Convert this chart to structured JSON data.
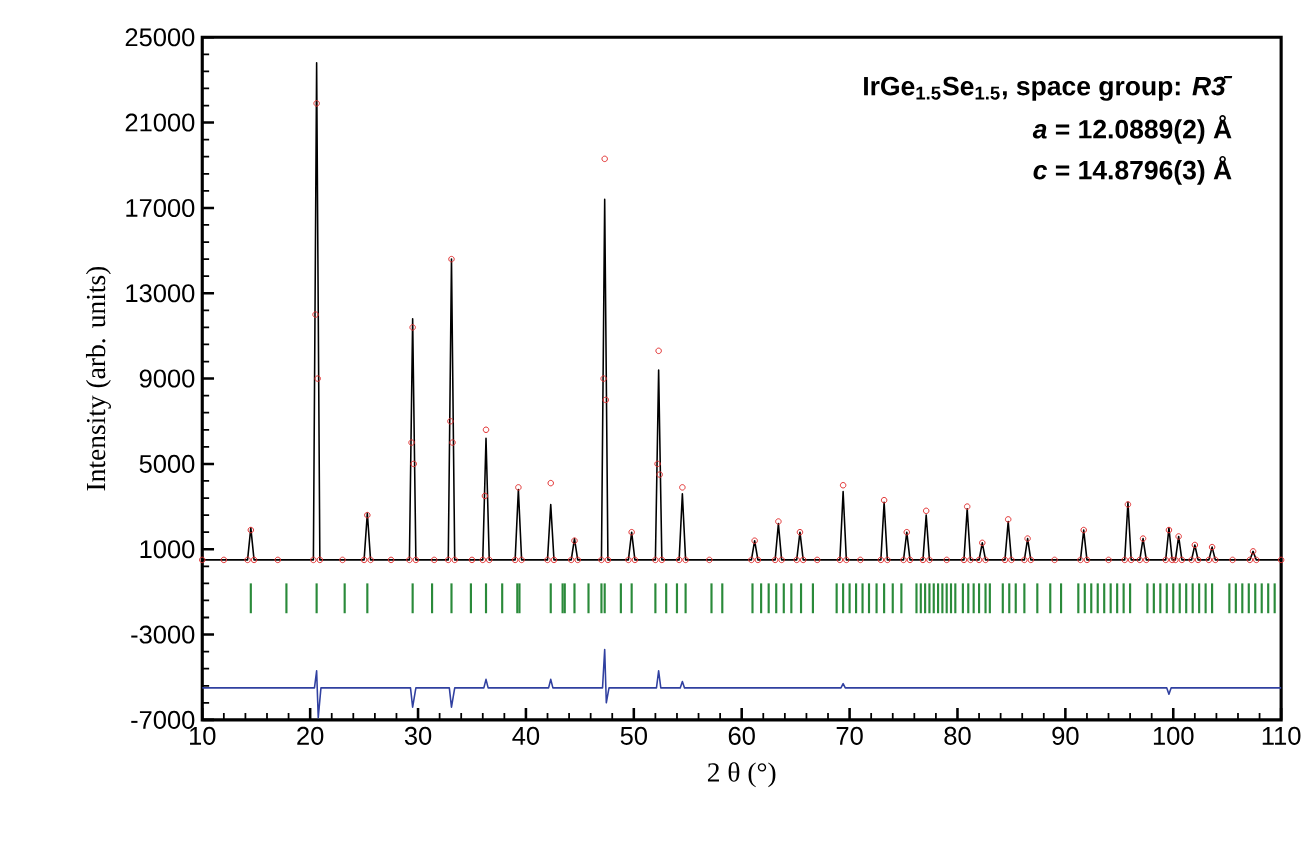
{
  "chart_data": {
    "type": "line",
    "xlabel": "2 θ (°)",
    "ylabel": "Intensity (arb. units)",
    "annotations": [
      "IrGe$_{1.5}$Se$_{1.5}$, space group: *R3̄*",
      "*a* = 12.0889(2) Å",
      "*c* = 14.8796(3) Å"
    ],
    "xlim": [
      10,
      110
    ],
    "xticks": [
      10,
      20,
      30,
      40,
      50,
      60,
      70,
      80,
      90,
      100,
      110
    ],
    "ylim": [
      -7000,
      25000
    ],
    "yticks": [
      -7000,
      -3000,
      1000,
      5000,
      9000,
      13000,
      17000,
      21000,
      25000
    ],
    "series": [
      {
        "color": "#000000",
        "x": [
          10,
          14.2,
          14.5,
          14.8,
          20.3,
          20.6,
          20.9,
          25.0,
          25.3,
          25.6,
          29.2,
          29.5,
          29.8,
          32.8,
          33.1,
          33.4,
          36.0,
          36.3,
          36.6,
          39.0,
          39.3,
          39.6,
          42.0,
          42.3,
          42.6,
          44.2,
          44.5,
          44.8,
          47.0,
          47.3,
          47.6,
          49.5,
          49.8,
          50.1,
          52.0,
          52.3,
          52.6,
          54.2,
          54.5,
          54.8,
          60.9,
          61.2,
          61.5,
          63.1,
          63.4,
          63.7,
          65.1,
          65.4,
          65.7,
          69.1,
          69.4,
          69.7,
          72.9,
          73.2,
          73.5,
          75.0,
          75.3,
          75.6,
          76.8,
          77.1,
          77.4,
          80.6,
          80.9,
          81.2,
          82.0,
          82.3,
          82.6,
          84.4,
          84.7,
          85.0,
          86.2,
          86.5,
          86.8,
          91.4,
          91.7,
          92.0,
          95.5,
          95.8,
          96.1,
          96.9,
          97.2,
          97.5,
          99.3,
          99.6,
          99.9,
          100.2,
          100.5,
          100.8,
          101.7,
          102.0,
          102.3,
          103.3,
          103.6,
          103.9,
          107.1,
          107.4,
          107.7,
          110
        ],
        "values": [
          500,
          500,
          2000,
          500,
          500,
          23800,
          500,
          500,
          2700,
          500,
          500,
          11800,
          500,
          500,
          14600,
          500,
          500,
          6200,
          500,
          500,
          3800,
          500,
          500,
          3100,
          500,
          500,
          1500,
          500,
          500,
          17400,
          500,
          500,
          1800,
          500,
          500,
          9400,
          500,
          500,
          3600,
          500,
          500,
          1400,
          500,
          500,
          2200,
          500,
          500,
          1800,
          500,
          500,
          3700,
          500,
          500,
          3200,
          500,
          500,
          1800,
          500,
          500,
          2600,
          500,
          500,
          2900,
          500,
          500,
          1300,
          500,
          500,
          2300,
          500,
          500,
          1500,
          500,
          500,
          1900,
          500,
          500,
          3200,
          500,
          500,
          1500,
          500,
          500,
          2000,
          500,
          500,
          1600,
          500,
          500,
          1200,
          500,
          500,
          1100,
          500,
          500,
          900,
          500,
          500
        ]
      },
      {
        "type": "scatter",
        "color": "#e03030",
        "marker": "circle",
        "x": [
          10,
          12,
          14.2,
          14.5,
          14.8,
          17,
          20.3,
          20.5,
          20.6,
          20.7,
          20.9,
          23,
          25.0,
          25.3,
          25.6,
          27.5,
          29.2,
          29.4,
          29.5,
          29.6,
          29.8,
          31.5,
          32.8,
          33.0,
          33.1,
          33.2,
          33.4,
          35,
          36.0,
          36.2,
          36.3,
          36.6,
          39.0,
          39.3,
          39.6,
          42.0,
          42.3,
          42.6,
          44.2,
          44.5,
          44.8,
          47.0,
          47.2,
          47.3,
          47.4,
          47.6,
          49.5,
          49.8,
          50.1,
          52.0,
          52.2,
          52.3,
          52.4,
          52.6,
          54.2,
          54.5,
          54.8,
          57,
          60.9,
          61.2,
          61.5,
          63.1,
          63.4,
          63.7,
          65.1,
          65.4,
          65.7,
          67,
          69.1,
          69.4,
          69.7,
          71,
          72.9,
          73.2,
          73.5,
          75.0,
          75.3,
          75.6,
          76.8,
          77.1,
          77.4,
          79,
          80.6,
          80.9,
          81.2,
          82.0,
          82.3,
          82.6,
          84.4,
          84.7,
          85.0,
          86.2,
          86.5,
          86.8,
          89,
          91.4,
          91.7,
          92.0,
          94,
          95.5,
          95.8,
          96.1,
          96.9,
          97.2,
          97.5,
          99.3,
          99.6,
          99.9,
          100.2,
          100.5,
          100.8,
          101.7,
          102.0,
          102.3,
          103.3,
          103.6,
          103.9,
          105.5,
          107.1,
          107.4,
          107.7,
          110
        ],
        "values": [
          500,
          500,
          500,
          1900,
          500,
          500,
          500,
          12000,
          21900,
          9000,
          500,
          500,
          500,
          2600,
          500,
          500,
          500,
          6000,
          11400,
          5000,
          500,
          500,
          500,
          7000,
          14600,
          6000,
          500,
          500,
          500,
          3500,
          6600,
          500,
          500,
          3900,
          500,
          500,
          4100,
          500,
          500,
          1400,
          500,
          500,
          9000,
          19300,
          8000,
          500,
          500,
          1800,
          500,
          500,
          5000,
          10300,
          4500,
          500,
          500,
          3900,
          500,
          500,
          500,
          1400,
          500,
          500,
          2300,
          500,
          500,
          1800,
          500,
          500,
          500,
          4000,
          500,
          500,
          500,
          3300,
          500,
          500,
          1800,
          500,
          500,
          2800,
          500,
          500,
          500,
          3000,
          500,
          500,
          1300,
          500,
          500,
          2400,
          500,
          500,
          1500,
          500,
          500,
          500,
          1900,
          500,
          500,
          500,
          3100,
          500,
          500,
          1500,
          500,
          500,
          1900,
          500,
          500,
          1600,
          500,
          500,
          1200,
          500,
          500,
          1100,
          500,
          500,
          500,
          900,
          500,
          500
        ]
      },
      {
        "type": "bar",
        "color": "#2a8a3a",
        "x": [
          14.5,
          17.8,
          20.6,
          23.2,
          25.3,
          29.5,
          31.3,
          33.1,
          34.9,
          36.3,
          37.8,
          39.2,
          39.4,
          42.3,
          43.4,
          43.6,
          44.5,
          45.8,
          47.0,
          47.3,
          48.8,
          49.8,
          52.0,
          53.0,
          54.0,
          54.8,
          57.2,
          58.2,
          61.0,
          61.8,
          62.5,
          63.2,
          63.9,
          64.6,
          65.5,
          66.6,
          68.8,
          69.4,
          70.0,
          70.6,
          71.2,
          71.8,
          72.5,
          73.2,
          74.0,
          74.8,
          76.2,
          76.6,
          77.0,
          77.4,
          77.8,
          78.2,
          78.6,
          79.0,
          79.4,
          79.8,
          80.5,
          81.0,
          81.5,
          82.0,
          82.6,
          83.0,
          84.2,
          84.8,
          85.4,
          86.2,
          87.4,
          88.6,
          89.6,
          91.2,
          91.8,
          92.4,
          93.0,
          93.6,
          94.2,
          94.8,
          95.4,
          96.0,
          97.6,
          98.2,
          98.8,
          99.4,
          100.0,
          100.6,
          101.2,
          101.8,
          102.4,
          103.0,
          103.6,
          105.2,
          105.8,
          106.4,
          107.0,
          107.6,
          108.2,
          108.8,
          109.4
        ],
        "base": [
          -2000,
          -2000,
          -2000,
          -2000,
          -2000,
          -2000,
          -2000,
          -2000,
          -2000,
          -2000,
          -2000,
          -2000,
          -2000,
          -2000,
          -2000,
          -2000,
          -2000,
          -2000,
          -2000,
          -2000,
          -2000,
          -2000,
          -2000,
          -2000,
          -2000,
          -2000,
          -2000,
          -2000,
          -2000,
          -2000,
          -2000,
          -2000,
          -2000,
          -2000,
          -2000,
          -2000,
          -2000,
          -2000,
          -2000,
          -2000,
          -2000,
          -2000,
          -2000,
          -2000,
          -2000,
          -2000,
          -2000,
          -2000,
          -2000,
          -2000,
          -2000,
          -2000,
          -2000,
          -2000,
          -2000,
          -2000,
          -2000,
          -2000,
          -2000,
          -2000,
          -2000,
          -2000,
          -2000,
          -2000,
          -2000,
          -2000,
          -2000,
          -2000,
          -2000,
          -2000,
          -2000,
          -2000,
          -2000,
          -2000,
          -2000,
          -2000,
          -2000,
          -2000,
          -2000,
          -2000,
          -2000,
          -2000,
          -2000,
          -2000,
          -2000,
          -2000,
          -2000,
          -2000,
          -2000,
          -2000,
          -2000,
          -2000,
          -2000,
          -2000,
          -2000,
          -2000,
          -2000
        ],
        "values": [
          1400,
          1400,
          1400,
          1400,
          1400,
          1400,
          1400,
          1400,
          1400,
          1400,
          1400,
          1400,
          1400,
          1400,
          1400,
          1400,
          1400,
          1400,
          1400,
          1400,
          1400,
          1400,
          1400,
          1400,
          1400,
          1400,
          1400,
          1400,
          1400,
          1400,
          1400,
          1400,
          1400,
          1400,
          1400,
          1400,
          1400,
          1400,
          1400,
          1400,
          1400,
          1400,
          1400,
          1400,
          1400,
          1400,
          1400,
          1400,
          1400,
          1400,
          1400,
          1400,
          1400,
          1400,
          1400,
          1400,
          1400,
          1400,
          1400,
          1400,
          1400,
          1400,
          1400,
          1400,
          1400,
          1400,
          1400,
          1400,
          1400,
          1400,
          1400,
          1400,
          1400,
          1400,
          1400,
          1400,
          1400,
          1400,
          1400,
          1400,
          1400,
          1400,
          1400,
          1400,
          1400,
          1400,
          1400,
          1400,
          1400,
          1400,
          1400,
          1400,
          1400,
          1400,
          1400,
          1400,
          1400
        ]
      },
      {
        "type": "line",
        "color": "#3040a0",
        "x": [
          10,
          20.4,
          20.6,
          20.75,
          21,
          29.3,
          29.5,
          29.8,
          32.9,
          33.1,
          33.4,
          36.1,
          36.3,
          36.5,
          42.1,
          42.3,
          42.5,
          47.1,
          47.3,
          47.45,
          47.7,
          52.1,
          52.3,
          52.5,
          54.3,
          54.5,
          54.7,
          69.2,
          69.4,
          69.6,
          99.4,
          99.6,
          99.8,
          110
        ],
        "values": [
          -5500,
          -5500,
          -4700,
          -6900,
          -5500,
          -5500,
          -6400,
          -5500,
          -5500,
          -6400,
          -5500,
          -5500,
          -5100,
          -5500,
          -5500,
          -5100,
          -5500,
          -5500,
          -3700,
          -6200,
          -5500,
          -5500,
          -4700,
          -5500,
          -5500,
          -5200,
          -5500,
          -5500,
          -5300,
          -5500,
          -5500,
          -5800,
          -5500,
          -5500
        ]
      }
    ]
  }
}
